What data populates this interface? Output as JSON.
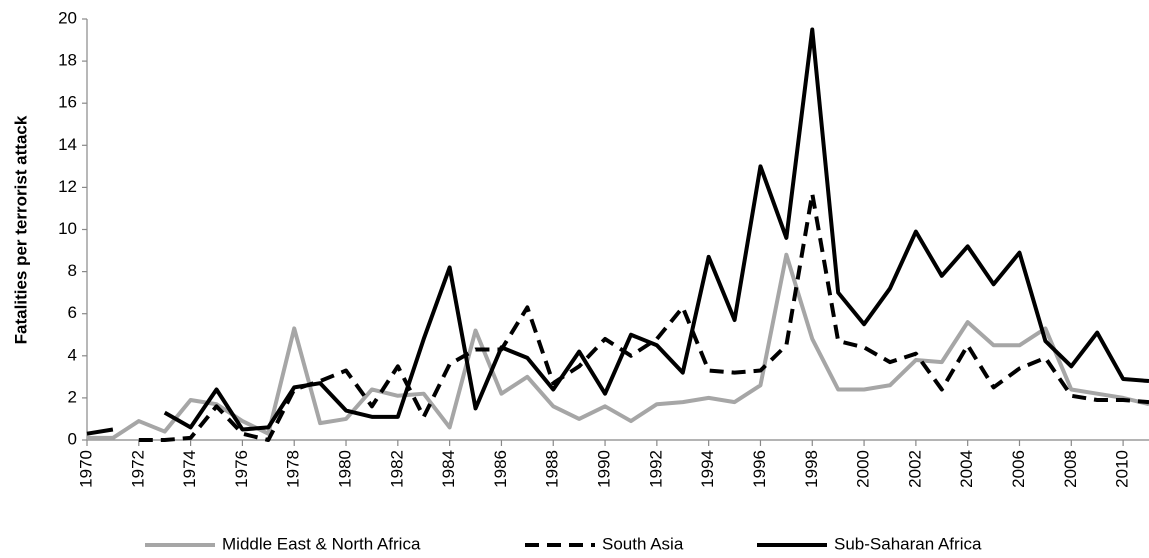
{
  "chart_data": {
    "type": "line",
    "y_label": "Fatalities per terrorist attack",
    "x": [
      1970,
      1971,
      1972,
      1973,
      1974,
      1975,
      1976,
      1977,
      1978,
      1979,
      1980,
      1981,
      1982,
      1983,
      1984,
      1985,
      1986,
      1987,
      1988,
      1989,
      1990,
      1991,
      1992,
      1993,
      1994,
      1995,
      1996,
      1997,
      1998,
      1999,
      2000,
      2001,
      2002,
      2003,
      2004,
      2005,
      2006,
      2007,
      2008,
      2009,
      2010,
      2011
    ],
    "xlim": [
      1970,
      2011
    ],
    "xticks": [
      1970,
      1972,
      1974,
      1976,
      1978,
      1980,
      1982,
      1984,
      1986,
      1988,
      1990,
      1992,
      1994,
      1996,
      1998,
      2000,
      2002,
      2004,
      2006,
      2008,
      2010
    ],
    "ylim": [
      0,
      20
    ],
    "yticks": [
      0,
      2,
      4,
      6,
      8,
      10,
      12,
      14,
      16,
      18,
      20
    ],
    "grid": false,
    "legend": "bottom",
    "series": [
      {
        "name": "Middle East & North Africa",
        "color": "#a6a6a6",
        "line_style": "solid",
        "values": [
          0.1,
          0.1,
          0.9,
          0.4,
          1.9,
          1.7,
          0.9,
          0.3,
          5.3,
          0.8,
          1.0,
          2.4,
          2.1,
          2.2,
          0.6,
          5.2,
          2.2,
          3.0,
          1.6,
          1.0,
          1.6,
          0.9,
          1.7,
          1.8,
          2.0,
          1.8,
          2.6,
          8.8,
          4.8,
          2.4,
          2.4,
          2.6,
          3.8,
          3.7,
          5.6,
          4.5,
          4.5,
          5.3,
          2.4,
          2.2,
          2.0,
          1.7
        ]
      },
      {
        "name": "South Asia",
        "color": "#000000",
        "line_style": "dashed",
        "values": [
          null,
          null,
          0.0,
          0.0,
          0.1,
          1.6,
          0.3,
          0.0,
          2.4,
          2.8,
          3.3,
          1.6,
          3.5,
          1.1,
          3.6,
          4.3,
          4.3,
          6.3,
          2.7,
          3.5,
          4.8,
          4.0,
          4.8,
          6.3,
          3.3,
          3.2,
          3.3,
          4.5,
          11.7,
          4.7,
          4.4,
          3.7,
          4.1,
          2.4,
          4.5,
          2.5,
          3.4,
          3.9,
          2.1,
          1.9,
          1.9,
          1.8
        ]
      },
      {
        "name": "Sub-Saharan Africa",
        "color": "#000000",
        "line_style": "solid",
        "values": [
          0.3,
          0.5,
          null,
          1.3,
          0.6,
          2.4,
          0.5,
          0.6,
          2.5,
          2.7,
          1.4,
          1.1,
          1.1,
          4.8,
          8.2,
          1.5,
          4.4,
          3.9,
          2.4,
          4.2,
          2.2,
          5.0,
          4.5,
          3.2,
          8.7,
          5.7,
          13.0,
          9.6,
          19.5,
          7.0,
          5.5,
          7.2,
          9.9,
          7.8,
          9.2,
          7.4,
          8.9,
          4.7,
          3.5,
          5.1,
          2.9,
          2.8
        ]
      }
    ]
  }
}
